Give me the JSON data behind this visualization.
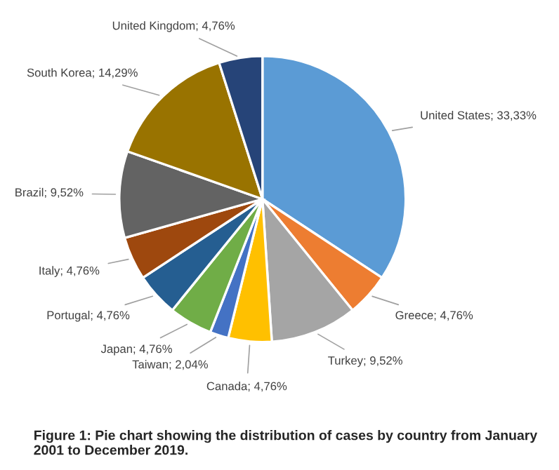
{
  "chart_data": {
    "type": "pie",
    "categories": [
      "United States",
      "Greece",
      "Turkey",
      "Canada",
      "Taiwan",
      "Japan",
      "Portugal",
      "Italy",
      "Brazil",
      "South Korea",
      "United Kingdom"
    ],
    "values": [
      33.33,
      4.76,
      9.52,
      4.76,
      2.04,
      4.76,
      4.76,
      4.76,
      9.52,
      14.29,
      4.76
    ],
    "value_labels": [
      "33,33%",
      "4,76%",
      "9,52%",
      "4,76%",
      "2,04%",
      "4,76%",
      "4,76%",
      "4,76%",
      "9,52%",
      "14,29%",
      "4,76%"
    ],
    "colors": [
      "#5b9bd5",
      "#ed7d31",
      "#a5a5a5",
      "#ffc000",
      "#4472c4",
      "#70ad47",
      "#255e91",
      "#9e480e",
      "#636363",
      "#997300",
      "#264478"
    ],
    "annotations": [
      "Figure 1: Pie chart showing the distribution of cases by country from January 2001 to December 2019."
    ]
  }
}
